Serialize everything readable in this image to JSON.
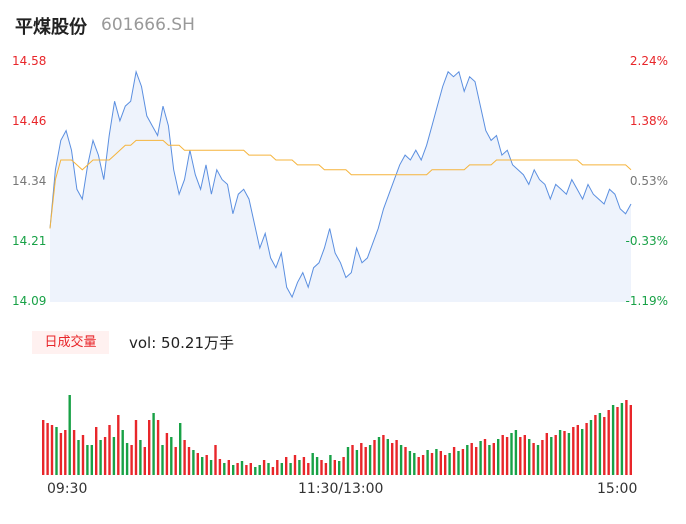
{
  "header": {
    "name": "平煤股份",
    "code": "601666.SH"
  },
  "price_axis": {
    "left_labels": [
      "14.58",
      "14.46",
      "14.34",
      "14.21",
      "14.09"
    ],
    "right_labels": [
      "2.24%",
      "1.38%",
      "0.53%",
      "-0.33%",
      "-1.19%"
    ]
  },
  "volume": {
    "tag": "日成交量",
    "text": "vol: 50.21万手"
  },
  "time_axis": {
    "labels": [
      "09:30",
      "11:30/13:00",
      "15:00"
    ]
  },
  "colors": {
    "price_line": "#5b8fe0",
    "price_fill": "#eef3fc",
    "avg_line": "#f5b43c",
    "up": "#e8262a",
    "down": "#18a146",
    "flat": "#777777"
  },
  "chart_data": [
    {
      "type": "line",
      "title": "",
      "ylim": [
        14.09,
        14.58
      ],
      "x_labels": [
        "09:30",
        "11:30/13:00",
        "15:00"
      ],
      "series": [
        {
          "values": [
            14.24,
            14.36,
            14.42,
            14.44,
            14.4,
            14.32,
            14.3,
            14.37,
            14.42,
            14.39,
            14.34,
            14.43,
            14.5,
            14.46,
            14.49,
            14.5,
            14.56,
            14.53,
            14.47,
            14.45,
            14.43,
            14.49,
            14.45,
            14.36,
            14.31,
            14.34,
            14.4,
            14.35,
            14.32,
            14.37,
            14.31,
            14.36,
            14.34,
            14.33,
            14.27,
            14.31,
            14.32,
            14.3,
            14.25,
            14.2,
            14.23,
            14.18,
            14.16,
            14.19,
            14.12,
            14.1,
            14.13,
            14.15,
            14.12,
            14.16,
            14.17,
            14.2,
            14.24,
            14.19,
            14.17,
            14.14,
            14.15,
            14.2,
            14.17,
            14.18,
            14.21,
            14.24,
            14.28,
            14.31,
            14.34,
            14.37,
            14.39,
            14.38,
            14.4,
            14.38,
            14.41,
            14.45,
            14.49,
            14.53,
            14.56,
            14.55,
            14.56,
            14.52,
            14.55,
            14.54,
            14.49,
            14.44,
            14.42,
            14.43,
            14.39,
            14.4,
            14.37,
            14.36,
            14.35,
            14.33,
            14.36,
            14.34,
            14.33,
            14.3,
            14.33,
            14.32,
            14.31,
            14.34,
            14.32,
            14.3,
            14.33,
            14.31,
            14.3,
            14.29,
            14.32,
            14.31,
            14.28,
            14.27,
            14.29
          ]
        },
        {
          "values": [
            14.24,
            14.34,
            14.38,
            14.38,
            14.38,
            14.37,
            14.36,
            14.37,
            14.38,
            14.38,
            14.38,
            14.38,
            14.39,
            14.4,
            14.41,
            14.41,
            14.42,
            14.42,
            14.42,
            14.42,
            14.42,
            14.42,
            14.41,
            14.41,
            14.41,
            14.4,
            14.4,
            14.4,
            14.4,
            14.4,
            14.4,
            14.4,
            14.4,
            14.4,
            14.4,
            14.4,
            14.4,
            14.39,
            14.39,
            14.39,
            14.39,
            14.39,
            14.38,
            14.38,
            14.38,
            14.38,
            14.37,
            14.37,
            14.37,
            14.37,
            14.37,
            14.36,
            14.36,
            14.36,
            14.36,
            14.36,
            14.35,
            14.35,
            14.35,
            14.35,
            14.35,
            14.35,
            14.35,
            14.35,
            14.35,
            14.35,
            14.35,
            14.35,
            14.35,
            14.35,
            14.35,
            14.36,
            14.36,
            14.36,
            14.36,
            14.36,
            14.36,
            14.36,
            14.37,
            14.37,
            14.37,
            14.37,
            14.37,
            14.38,
            14.38,
            14.38,
            14.38,
            14.38,
            14.38,
            14.38,
            14.38,
            14.38,
            14.38,
            14.38,
            14.38,
            14.38,
            14.38,
            14.38,
            14.38,
            14.37,
            14.37,
            14.37,
            14.37,
            14.37,
            14.37,
            14.37,
            14.37,
            14.37,
            14.36
          ]
        }
      ]
    },
    {
      "type": "bar",
      "title": "",
      "ylim": [
        0,
        110
      ],
      "values": [
        55,
        52,
        50,
        48,
        42,
        45,
        80,
        45,
        35,
        40,
        30,
        30,
        48,
        35,
        38,
        50,
        38,
        60,
        45,
        32,
        30,
        55,
        35,
        28,
        55,
        62,
        55,
        30,
        42,
        38,
        28,
        52,
        35,
        28,
        25,
        22,
        18,
        20,
        15,
        30,
        16,
        12,
        15,
        10,
        12,
        14,
        10,
        12,
        8,
        10,
        15,
        12,
        8,
        15,
        12,
        18,
        12,
        20,
        15,
        18,
        12,
        22,
        18,
        15,
        12,
        20,
        15,
        14,
        18,
        28,
        30,
        25,
        32,
        28,
        30,
        35,
        38,
        40,
        36,
        32,
        35,
        30,
        28,
        24,
        22,
        18,
        20,
        25,
        22,
        26,
        24,
        20,
        22,
        28,
        24,
        26,
        30,
        32,
        28,
        34,
        36,
        30,
        32,
        36,
        40,
        38,
        42,
        45,
        38,
        40,
        36,
        32,
        30,
        35,
        42,
        38,
        40,
        45,
        44,
        42,
        48,
        50,
        46,
        52,
        55,
        60,
        62,
        58,
        65,
        70,
        68,
        72,
        75,
        70
      ],
      "directions": [
        "u",
        "u",
        "u",
        "d",
        "u",
        "u",
        "d",
        "u",
        "d",
        "u",
        "d",
        "d",
        "u",
        "d",
        "u",
        "u",
        "d",
        "u",
        "d",
        "d",
        "u",
        "u",
        "d",
        "u",
        "u",
        "d",
        "u",
        "d",
        "u",
        "d",
        "u",
        "d",
        "u",
        "u",
        "d",
        "u",
        "d",
        "u",
        "d",
        "u",
        "u",
        "d",
        "u",
        "d",
        "u",
        "d",
        "u",
        "u",
        "d",
        "d",
        "u",
        "d",
        "u",
        "u",
        "d",
        "u",
        "d",
        "u",
        "d",
        "u",
        "u",
        "d",
        "d",
        "u",
        "u",
        "d",
        "u",
        "d",
        "u",
        "d",
        "u",
        "d",
        "u",
        "u",
        "d",
        "u",
        "d",
        "u",
        "d",
        "u",
        "u",
        "d",
        "u",
        "d",
        "d",
        "u",
        "u",
        "d",
        "u",
        "d",
        "u",
        "u",
        "d",
        "u",
        "d",
        "u",
        "d",
        "u",
        "u",
        "d",
        "u",
        "d",
        "u",
        "d",
        "u",
        "u",
        "d",
        "d",
        "u",
        "u",
        "d",
        "u",
        "d",
        "u",
        "u",
        "d",
        "u",
        "d",
        "u",
        "d",
        "u",
        "u",
        "d",
        "u",
        "d",
        "u",
        "d",
        "u",
        "u",
        "d",
        "u",
        "d",
        "u",
        "u"
      ]
    }
  ]
}
